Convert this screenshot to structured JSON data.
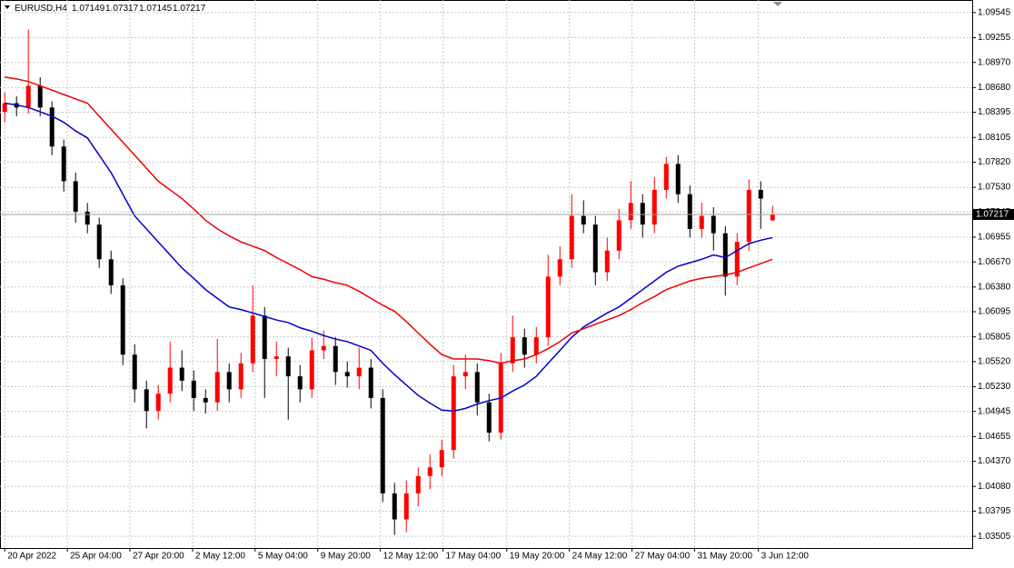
{
  "chart_data": {
    "type": "candlestick",
    "symbol": "EURUSD,H4",
    "up_color": "#ff0000",
    "down_color": "#000000",
    "grid": true,
    "xlim": [
      -0.4,
      81.9
    ],
    "ylim": [
      1.0337,
      1.0969
    ],
    "xticks": [
      {
        "value": 0,
        "label": "20 Apr 2022"
      },
      {
        "value": 5.3,
        "label": "25 Apr 04:00"
      },
      {
        "value": 10.6,
        "label": "27 Apr 20:00"
      },
      {
        "value": 15.9,
        "label": "2 May 12:00"
      },
      {
        "value": 21.2,
        "label": "5 May 04:00"
      },
      {
        "value": 26.5,
        "label": "9 May 20:00"
      },
      {
        "value": 31.8,
        "label": "12 May 12:00"
      },
      {
        "value": 37.1,
        "label": "17 May 04:00"
      },
      {
        "value": 42.5,
        "label": "19 May 20:00"
      },
      {
        "value": 47.8,
        "label": "24 May 12:00"
      },
      {
        "value": 53.1,
        "label": "27 May 04:00"
      },
      {
        "value": 58.4,
        "label": "31 May 20:00"
      },
      {
        "value": 63.8,
        "label": "3 Jun 12:00"
      }
    ],
    "yticks": [
      1.09545,
      1.09255,
      {
        "value": 1.0897,
        "label": "1.08970"
      },
      {
        "value": 1.0868,
        "label": "1.08680"
      },
      1.08395,
      1.08105,
      {
        "value": 1.0782,
        "label": "1.07820"
      },
      {
        "value": 1.0753,
        "label": "1.07530"
      },
      1.07245,
      1.06955,
      {
        "value": 1.0667,
        "label": "1.06670"
      },
      {
        "value": 1.0638,
        "label": "1.06380"
      },
      1.06095,
      1.05805,
      {
        "value": 1.0552,
        "label": "1.05520"
      },
      {
        "value": 1.0523,
        "label": "1.05230"
      },
      1.04945,
      1.04655,
      {
        "value": 1.0437,
        "label": "1.04370"
      },
      {
        "value": 1.0408,
        "label": "1.04080"
      },
      1.03795,
      1.03505
    ],
    "open": [
      1.084,
      1.085,
      1.0845,
      1.087,
      1.0845,
      1.08,
      1.076,
      1.0725,
      1.071,
      1.067,
      1.064,
      1.056,
      1.052,
      1.0495,
      1.0515,
      1.0545,
      1.053,
      1.051,
      1.0505,
      1.054,
      1.052,
      1.055,
      1.0605,
      1.0555,
      1.0558,
      1.0535,
      1.052,
      1.0565,
      1.057,
      1.054,
      1.0535,
      1.0545,
      1.051,
      1.04,
      1.037,
      1.04,
      1.042,
      1.043,
      1.045,
      1.0535,
      1.054,
      1.0505,
      1.047,
      1.055,
      1.058,
      1.056,
      1.058,
      1.065,
      1.067,
      1.072,
      1.071,
      1.0655,
      1.068,
      1.0715,
      1.0735,
      1.071,
      1.075,
      1.078,
      1.0745,
      1.0705,
      1.072,
      1.07,
      1.065,
      1.069,
      1.075,
      1.07149
    ],
    "high": [
      1.0862,
      1.0858,
      1.0935,
      1.088,
      1.0852,
      1.0808,
      1.077,
      1.0735,
      1.0718,
      1.068,
      1.0648,
      1.0572,
      1.053,
      1.0525,
      1.0575,
      1.0565,
      1.0542,
      1.052,
      1.0578,
      1.055,
      1.0562,
      1.064,
      1.0615,
      1.0575,
      1.0568,
      1.0548,
      1.058,
      1.0588,
      1.058,
      1.0552,
      1.0568,
      1.0555,
      1.052,
      1.0412,
      1.0415,
      1.043,
      1.0445,
      1.0462,
      1.0548,
      1.056,
      1.055,
      1.0515,
      1.0562,
      1.0605,
      1.059,
      1.0592,
      1.0675,
      1.0685,
      1.0745,
      1.0738,
      1.072,
      1.0695,
      1.0728,
      1.076,
      1.0745,
      1.0765,
      1.0788,
      1.079,
      1.0755,
      1.0735,
      1.073,
      1.0708,
      1.07,
      1.0762,
      1.076,
      1.07317
    ],
    "low": [
      1.0828,
      1.0835,
      1.0838,
      1.0835,
      1.079,
      1.0748,
      1.0712,
      1.07,
      1.066,
      1.063,
      1.0548,
      1.0505,
      1.0475,
      1.0485,
      1.0505,
      1.0518,
      1.0495,
      1.0492,
      1.0495,
      1.0505,
      1.051,
      1.054,
      1.051,
      1.0535,
      1.0485,
      1.0505,
      1.051,
      1.0555,
      1.0525,
      1.0522,
      1.052,
      1.0498,
      1.039,
      1.0352,
      1.0355,
      1.0385,
      1.0405,
      1.042,
      1.044,
      1.052,
      1.049,
      1.046,
      1.0462,
      1.054,
      1.0545,
      1.055,
      1.057,
      1.064,
      1.066,
      1.07,
      1.064,
      1.0645,
      1.067,
      1.0705,
      1.0695,
      1.07,
      1.074,
      1.0735,
      1.0695,
      1.0695,
      1.068,
      1.0628,
      1.064,
      1.068,
      1.0705,
      1.07145
    ],
    "close": [
      1.085,
      1.0845,
      1.087,
      1.0845,
      1.08,
      1.076,
      1.0725,
      1.071,
      1.067,
      1.064,
      1.056,
      1.052,
      1.0495,
      1.0515,
      1.0545,
      1.053,
      1.051,
      1.0505,
      1.054,
      1.052,
      1.055,
      1.0605,
      1.0555,
      1.0558,
      1.0535,
      1.052,
      1.0565,
      1.057,
      1.054,
      1.0535,
      1.0545,
      1.051,
      1.04,
      1.037,
      1.04,
      1.042,
      1.043,
      1.045,
      1.0535,
      1.054,
      1.0505,
      1.047,
      1.055,
      1.058,
      1.056,
      1.058,
      1.065,
      1.067,
      1.072,
      1.071,
      1.0655,
      1.068,
      1.0715,
      1.0735,
      1.071,
      1.075,
      1.078,
      1.0745,
      1.0705,
      1.072,
      1.07,
      1.065,
      1.069,
      1.075,
      1.074,
      1.07217
    ],
    "lines": [
      {
        "color": "#0000cc",
        "values": [
          1.085,
          1.0848,
          1.0845,
          1.084,
          1.0835,
          1.0828,
          1.0818,
          1.081,
          1.079,
          1.077,
          1.0745,
          1.072,
          1.0705,
          1.069,
          1.0675,
          1.066,
          1.0648,
          1.0635,
          1.0625,
          1.0615,
          1.0612,
          1.0608,
          1.0604,
          1.06,
          1.0597,
          1.0591,
          1.0587,
          1.0582,
          1.0578,
          1.0575,
          1.057,
          1.0565,
          1.055,
          1.0537,
          1.0525,
          1.0513,
          1.0504,
          1.0496,
          1.0495,
          1.0498,
          1.0503,
          1.0507,
          1.051,
          1.0518,
          1.0525,
          1.0535,
          1.055,
          1.0565,
          1.058,
          1.0592,
          1.06,
          1.0608,
          1.0615,
          1.0625,
          1.0635,
          1.0645,
          1.0655,
          1.0662,
          1.0666,
          1.067,
          1.0675,
          1.0672,
          1.068,
          1.0688,
          1.0692,
          1.0695
        ]
      },
      {
        "color": "#ee0000",
        "values": [
          1.088,
          1.0878,
          1.0875,
          1.087,
          1.0865,
          1.086,
          1.0855,
          1.085,
          1.0835,
          1.082,
          1.0805,
          1.079,
          1.0775,
          1.076,
          1.075,
          1.074,
          1.0728,
          1.0715,
          1.0705,
          1.0697,
          1.069,
          1.0685,
          1.068,
          1.0672,
          1.0665,
          1.0658,
          1.065,
          1.0647,
          1.0643,
          1.064,
          1.0633,
          1.0625,
          1.0617,
          1.061,
          1.0598,
          1.0585,
          1.0572,
          1.056,
          1.0555,
          1.0555,
          1.0555,
          1.0553,
          1.055,
          1.0553,
          1.0555,
          1.056,
          1.0567,
          1.0575,
          1.0585,
          1.059,
          1.0595,
          1.06,
          1.0605,
          1.0612,
          1.062,
          1.0627,
          1.0635,
          1.064,
          1.0645,
          1.0648,
          1.065,
          1.0652,
          1.0655,
          1.066,
          1.0665,
          1.067
        ]
      }
    ]
  }
}
